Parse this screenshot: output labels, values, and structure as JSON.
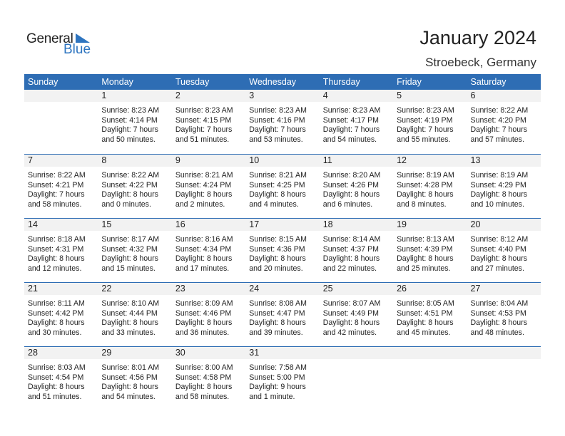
{
  "logo": {
    "text_general": "General",
    "text_blue": "Blue"
  },
  "title": "January 2024",
  "location": "Stroebeck, Germany",
  "colors": {
    "header": "#2e6db4",
    "date_strip": "#f2f2f2",
    "logo_blue": "#2e75c0"
  },
  "weekdays": [
    "Sunday",
    "Monday",
    "Tuesday",
    "Wednesday",
    "Thursday",
    "Friday",
    "Saturday"
  ],
  "weeks": [
    [
      null,
      {
        "day": "1",
        "sunrise": "Sunrise: 8:23 AM",
        "sunset": "Sunset: 4:14 PM",
        "daylight1": "Daylight: 7 hours",
        "daylight2": "and 50 minutes."
      },
      {
        "day": "2",
        "sunrise": "Sunrise: 8:23 AM",
        "sunset": "Sunset: 4:15 PM",
        "daylight1": "Daylight: 7 hours",
        "daylight2": "and 51 minutes."
      },
      {
        "day": "3",
        "sunrise": "Sunrise: 8:23 AM",
        "sunset": "Sunset: 4:16 PM",
        "daylight1": "Daylight: 7 hours",
        "daylight2": "and 53 minutes."
      },
      {
        "day": "4",
        "sunrise": "Sunrise: 8:23 AM",
        "sunset": "Sunset: 4:17 PM",
        "daylight1": "Daylight: 7 hours",
        "daylight2": "and 54 minutes."
      },
      {
        "day": "5",
        "sunrise": "Sunrise: 8:23 AM",
        "sunset": "Sunset: 4:19 PM",
        "daylight1": "Daylight: 7 hours",
        "daylight2": "and 55 minutes."
      },
      {
        "day": "6",
        "sunrise": "Sunrise: 8:22 AM",
        "sunset": "Sunset: 4:20 PM",
        "daylight1": "Daylight: 7 hours",
        "daylight2": "and 57 minutes."
      }
    ],
    [
      {
        "day": "7",
        "sunrise": "Sunrise: 8:22 AM",
        "sunset": "Sunset: 4:21 PM",
        "daylight1": "Daylight: 7 hours",
        "daylight2": "and 58 minutes."
      },
      {
        "day": "8",
        "sunrise": "Sunrise: 8:22 AM",
        "sunset": "Sunset: 4:22 PM",
        "daylight1": "Daylight: 8 hours",
        "daylight2": "and 0 minutes."
      },
      {
        "day": "9",
        "sunrise": "Sunrise: 8:21 AM",
        "sunset": "Sunset: 4:24 PM",
        "daylight1": "Daylight: 8 hours",
        "daylight2": "and 2 minutes."
      },
      {
        "day": "10",
        "sunrise": "Sunrise: 8:21 AM",
        "sunset": "Sunset: 4:25 PM",
        "daylight1": "Daylight: 8 hours",
        "daylight2": "and 4 minutes."
      },
      {
        "day": "11",
        "sunrise": "Sunrise: 8:20 AM",
        "sunset": "Sunset: 4:26 PM",
        "daylight1": "Daylight: 8 hours",
        "daylight2": "and 6 minutes."
      },
      {
        "day": "12",
        "sunrise": "Sunrise: 8:19 AM",
        "sunset": "Sunset: 4:28 PM",
        "daylight1": "Daylight: 8 hours",
        "daylight2": "and 8 minutes."
      },
      {
        "day": "13",
        "sunrise": "Sunrise: 8:19 AM",
        "sunset": "Sunset: 4:29 PM",
        "daylight1": "Daylight: 8 hours",
        "daylight2": "and 10 minutes."
      }
    ],
    [
      {
        "day": "14",
        "sunrise": "Sunrise: 8:18 AM",
        "sunset": "Sunset: 4:31 PM",
        "daylight1": "Daylight: 8 hours",
        "daylight2": "and 12 minutes."
      },
      {
        "day": "15",
        "sunrise": "Sunrise: 8:17 AM",
        "sunset": "Sunset: 4:32 PM",
        "daylight1": "Daylight: 8 hours",
        "daylight2": "and 15 minutes."
      },
      {
        "day": "16",
        "sunrise": "Sunrise: 8:16 AM",
        "sunset": "Sunset: 4:34 PM",
        "daylight1": "Daylight: 8 hours",
        "daylight2": "and 17 minutes."
      },
      {
        "day": "17",
        "sunrise": "Sunrise: 8:15 AM",
        "sunset": "Sunset: 4:36 PM",
        "daylight1": "Daylight: 8 hours",
        "daylight2": "and 20 minutes."
      },
      {
        "day": "18",
        "sunrise": "Sunrise: 8:14 AM",
        "sunset": "Sunset: 4:37 PM",
        "daylight1": "Daylight: 8 hours",
        "daylight2": "and 22 minutes."
      },
      {
        "day": "19",
        "sunrise": "Sunrise: 8:13 AM",
        "sunset": "Sunset: 4:39 PM",
        "daylight1": "Daylight: 8 hours",
        "daylight2": "and 25 minutes."
      },
      {
        "day": "20",
        "sunrise": "Sunrise: 8:12 AM",
        "sunset": "Sunset: 4:40 PM",
        "daylight1": "Daylight: 8 hours",
        "daylight2": "and 27 minutes."
      }
    ],
    [
      {
        "day": "21",
        "sunrise": "Sunrise: 8:11 AM",
        "sunset": "Sunset: 4:42 PM",
        "daylight1": "Daylight: 8 hours",
        "daylight2": "and 30 minutes."
      },
      {
        "day": "22",
        "sunrise": "Sunrise: 8:10 AM",
        "sunset": "Sunset: 4:44 PM",
        "daylight1": "Daylight: 8 hours",
        "daylight2": "and 33 minutes."
      },
      {
        "day": "23",
        "sunrise": "Sunrise: 8:09 AM",
        "sunset": "Sunset: 4:46 PM",
        "daylight1": "Daylight: 8 hours",
        "daylight2": "and 36 minutes."
      },
      {
        "day": "24",
        "sunrise": "Sunrise: 8:08 AM",
        "sunset": "Sunset: 4:47 PM",
        "daylight1": "Daylight: 8 hours",
        "daylight2": "and 39 minutes."
      },
      {
        "day": "25",
        "sunrise": "Sunrise: 8:07 AM",
        "sunset": "Sunset: 4:49 PM",
        "daylight1": "Daylight: 8 hours",
        "daylight2": "and 42 minutes."
      },
      {
        "day": "26",
        "sunrise": "Sunrise: 8:05 AM",
        "sunset": "Sunset: 4:51 PM",
        "daylight1": "Daylight: 8 hours",
        "daylight2": "and 45 minutes."
      },
      {
        "day": "27",
        "sunrise": "Sunrise: 8:04 AM",
        "sunset": "Sunset: 4:53 PM",
        "daylight1": "Daylight: 8 hours",
        "daylight2": "and 48 minutes."
      }
    ],
    [
      {
        "day": "28",
        "sunrise": "Sunrise: 8:03 AM",
        "sunset": "Sunset: 4:54 PM",
        "daylight1": "Daylight: 8 hours",
        "daylight2": "and 51 minutes."
      },
      {
        "day": "29",
        "sunrise": "Sunrise: 8:01 AM",
        "sunset": "Sunset: 4:56 PM",
        "daylight1": "Daylight: 8 hours",
        "daylight2": "and 54 minutes."
      },
      {
        "day": "30",
        "sunrise": "Sunrise: 8:00 AM",
        "sunset": "Sunset: 4:58 PM",
        "daylight1": "Daylight: 8 hours",
        "daylight2": "and 58 minutes."
      },
      {
        "day": "31",
        "sunrise": "Sunrise: 7:58 AM",
        "sunset": "Sunset: 5:00 PM",
        "daylight1": "Daylight: 9 hours",
        "daylight2": "and 1 minute."
      },
      null,
      null,
      null
    ]
  ]
}
